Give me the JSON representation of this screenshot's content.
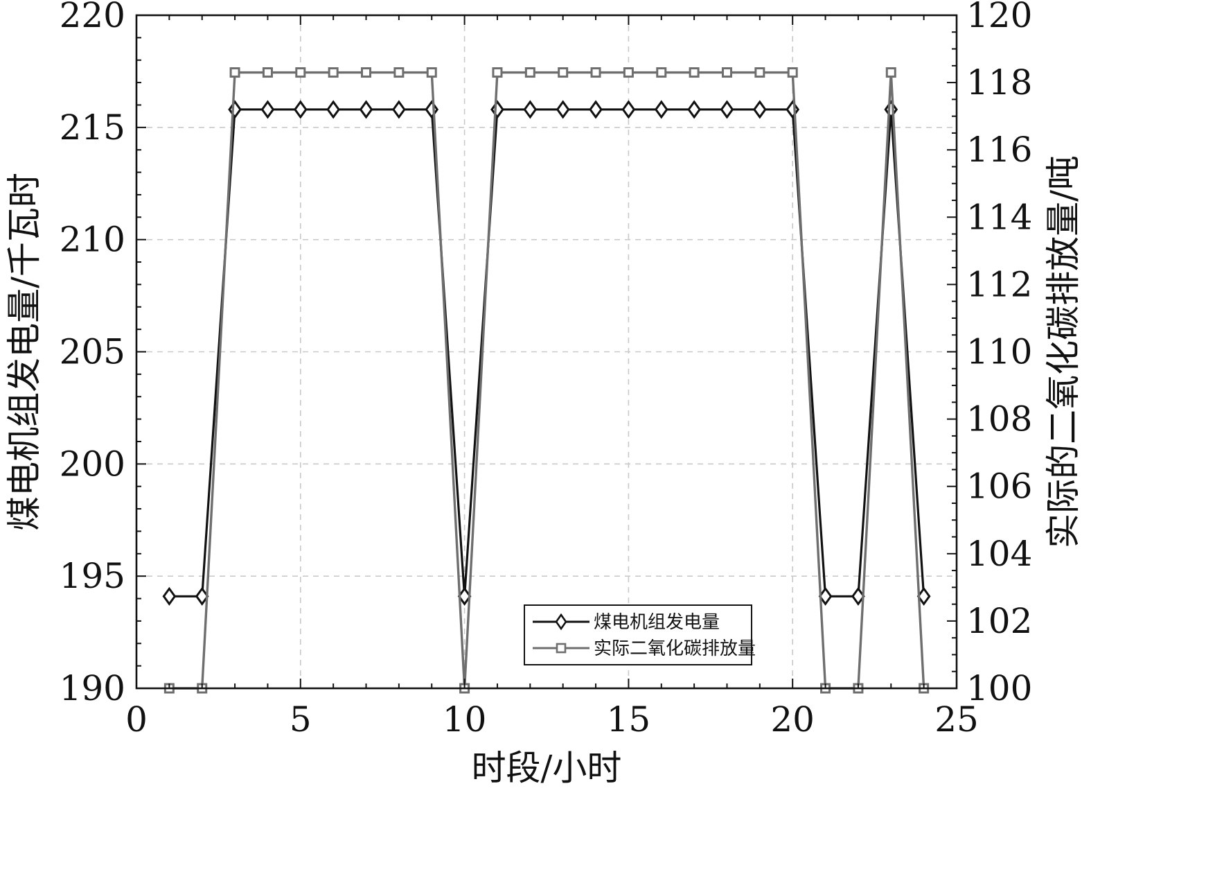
{
  "chart_data": {
    "type": "line",
    "xlabel": "时段/小时",
    "ylabel_left": "煤电机组发电量/千瓦时",
    "ylabel_right": "实际的二氧化碳排放量/吨",
    "xlim": [
      0,
      25
    ],
    "ylim_left": [
      190,
      220
    ],
    "ylim_right": [
      100,
      120
    ],
    "x_ticks": [
      "0",
      "5",
      "10",
      "15",
      "20",
      "25"
    ],
    "y_left_ticks": [
      "190",
      "195",
      "200",
      "205",
      "210",
      "215",
      "220"
    ],
    "y_right_ticks": [
      "100",
      "102",
      "104",
      "106",
      "108",
      "110",
      "112",
      "114",
      "116",
      "118",
      "120"
    ],
    "grid": true,
    "legend_position": "bottom-center",
    "x": [
      1,
      2,
      3,
      4,
      5,
      6,
      7,
      8,
      9,
      10,
      11,
      12,
      13,
      14,
      15,
      16,
      17,
      18,
      19,
      20,
      21,
      22,
      23,
      24
    ],
    "series": [
      {
        "name": "煤电机组发电量",
        "axis": "left",
        "marker": "diamond",
        "color": "#111111",
        "values": [
          194.1,
          194.1,
          215.8,
          215.8,
          215.8,
          215.8,
          215.8,
          215.8,
          215.8,
          194.1,
          215.8,
          215.8,
          215.8,
          215.8,
          215.8,
          215.8,
          215.8,
          215.8,
          215.8,
          215.8,
          194.1,
          194.1,
          215.8,
          194.1
        ]
      },
      {
        "name": "实际二氧化碳排放量",
        "axis": "right",
        "marker": "square",
        "color": "#6e6e6e",
        "values": [
          100,
          100,
          118.3,
          118.3,
          118.3,
          118.3,
          118.3,
          118.3,
          118.3,
          100,
          118.3,
          118.3,
          118.3,
          118.3,
          118.3,
          118.3,
          118.3,
          118.3,
          118.3,
          118.3,
          100,
          100,
          118.3,
          100
        ]
      }
    ]
  }
}
